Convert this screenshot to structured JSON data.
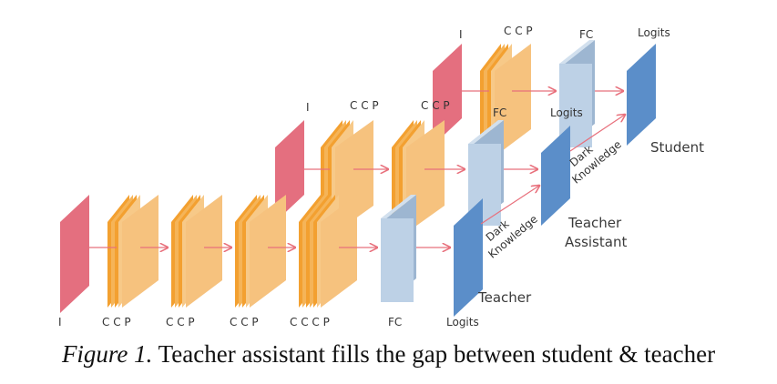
{
  "labels": {
    "input": "I",
    "cc_p": "C C  P",
    "ccc_p": "C C C  P",
    "fc": "FC",
    "logits": "Logits",
    "dark": "Dark",
    "knowledge": "Knowledge",
    "teacher": "Teacher",
    "teacher_assistant_1": "Teacher",
    "teacher_assistant_2": "Assistant",
    "student": "Student"
  },
  "colors": {
    "input": "#e46f7f",
    "conv_front": "#f6c27e",
    "conv_stripe": "#f3a030",
    "fc_front": "#bdd1e6",
    "fc_side": "#9db6d1",
    "logits": "#5b8ec9",
    "arrow": "#e8707c"
  },
  "caption": {
    "figure": "Figure 1.",
    "text": " Teacher assistant fills the gap between student & teacher"
  }
}
